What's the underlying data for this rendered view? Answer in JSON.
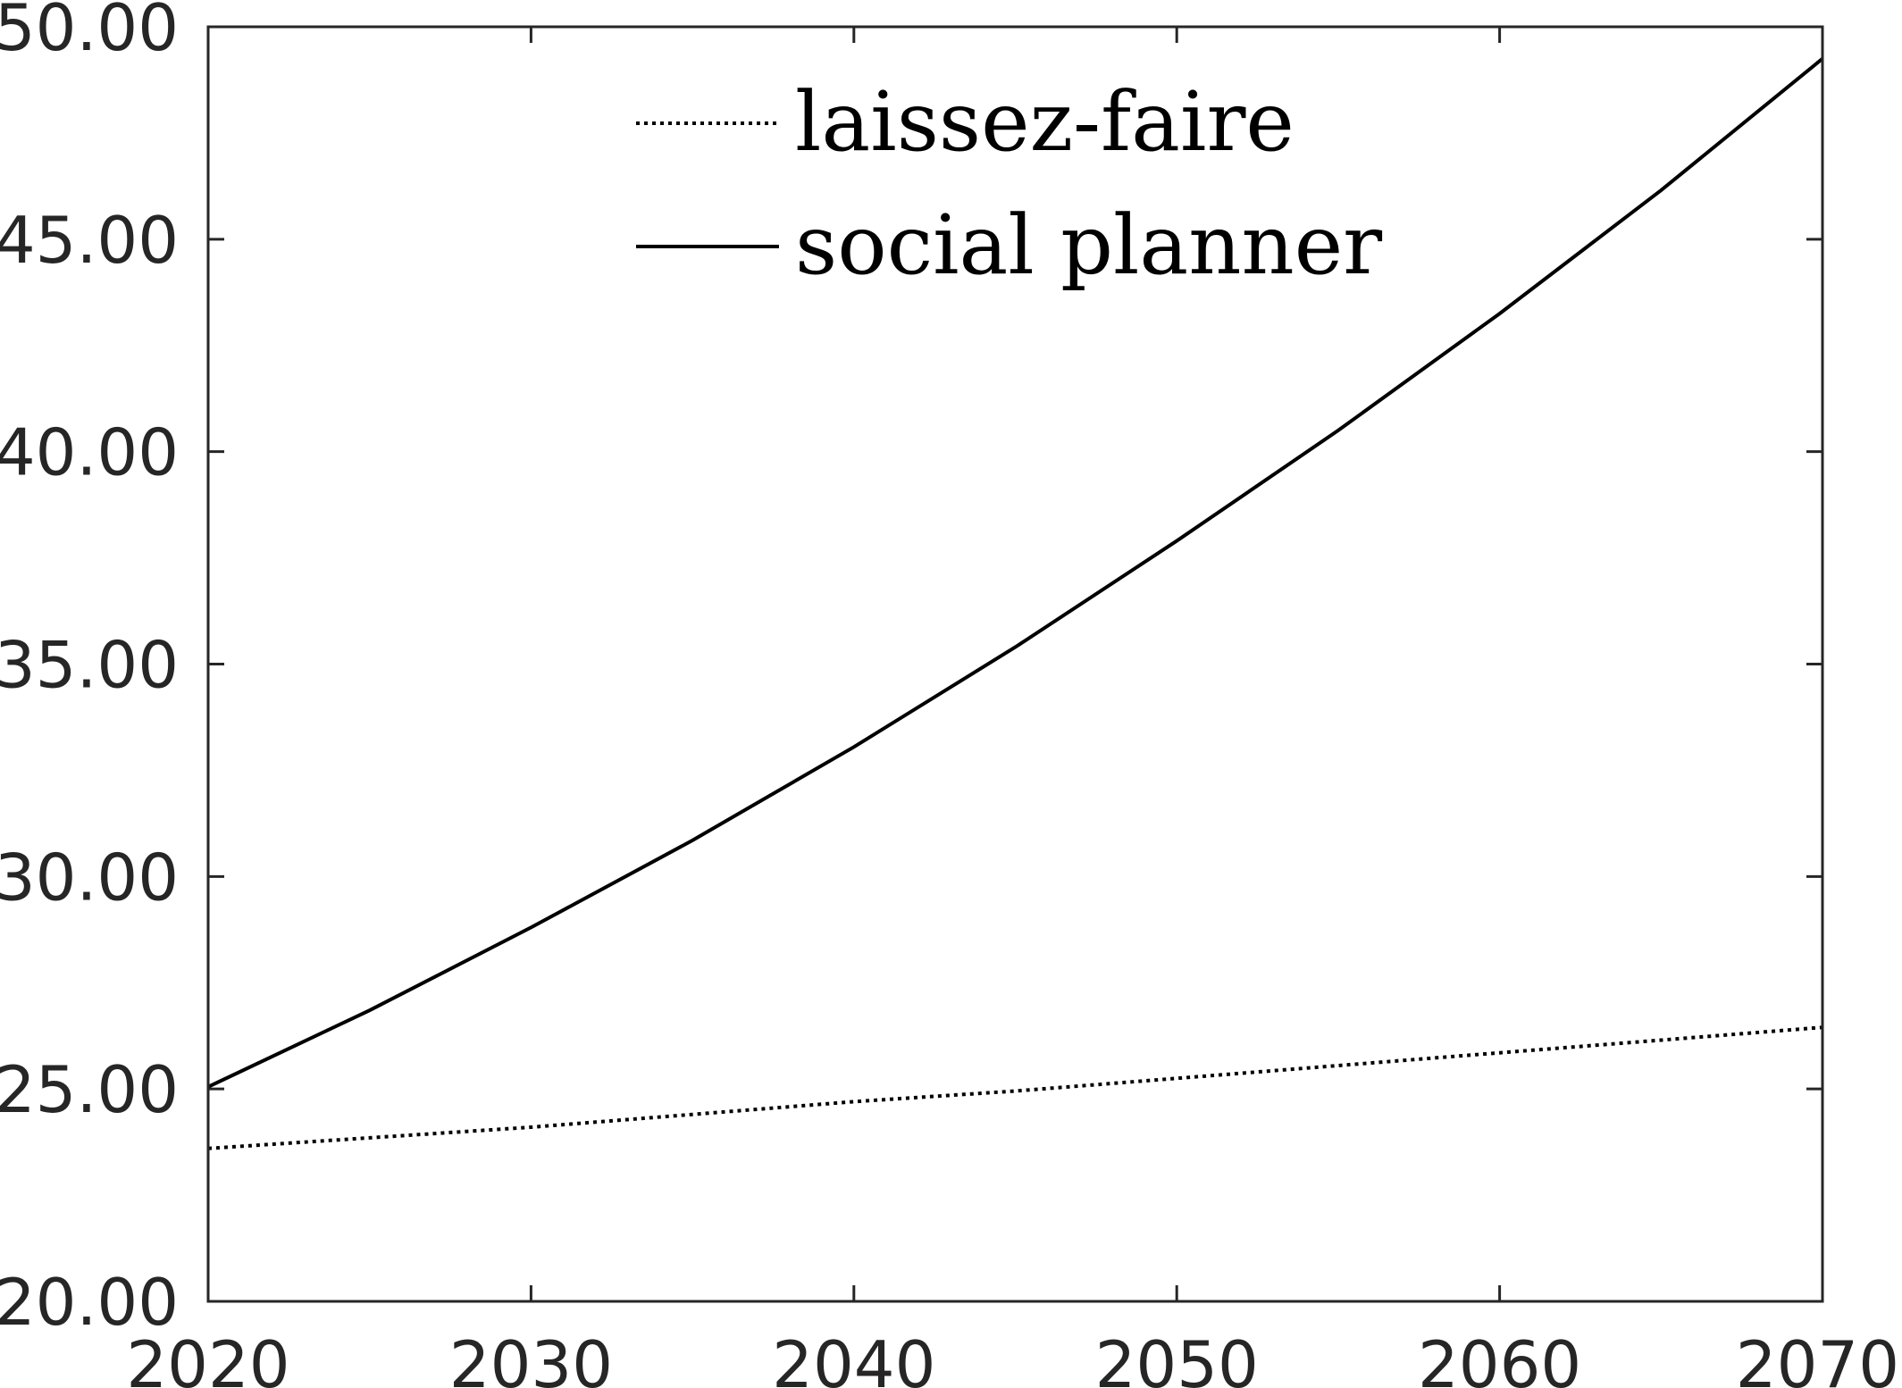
{
  "chart_data": {
    "type": "line",
    "title": "",
    "xlabel": "",
    "ylabel": "",
    "xlim": [
      2020,
      2070
    ],
    "ylim": [
      20,
      50
    ],
    "xticks": [
      2020,
      2030,
      2040,
      2050,
      2060,
      2070
    ],
    "yticks": [
      20,
      25,
      30,
      35,
      40,
      45,
      50
    ],
    "xtick_labels": [
      "2020",
      "2030",
      "2040",
      "2050",
      "2060",
      "2070"
    ],
    "ytick_labels": [
      "20.00",
      "25.00",
      "30.00",
      "35.00",
      "40.00",
      "45.00",
      "50.00"
    ],
    "grid": false,
    "legend": {
      "position": "top-center",
      "entries": [
        "laissez-faire",
        "social planner"
      ]
    },
    "x": [
      2020,
      2025,
      2030,
      2035,
      2040,
      2045,
      2050,
      2055,
      2060,
      2065,
      2070
    ],
    "series": [
      {
        "name": "laissez-faire",
        "line_style": "dotted",
        "color": "#000000",
        "values": [
          23.6,
          23.85,
          24.1,
          24.4,
          24.7,
          24.95,
          25.25,
          25.55,
          25.85,
          26.15,
          26.45
        ]
      },
      {
        "name": "social planner",
        "line_style": "solid",
        "color": "#000000",
        "values": [
          25.05,
          26.85,
          28.8,
          30.85,
          33.05,
          35.4,
          37.9,
          40.5,
          43.25,
          46.15,
          49.25
        ]
      }
    ]
  }
}
